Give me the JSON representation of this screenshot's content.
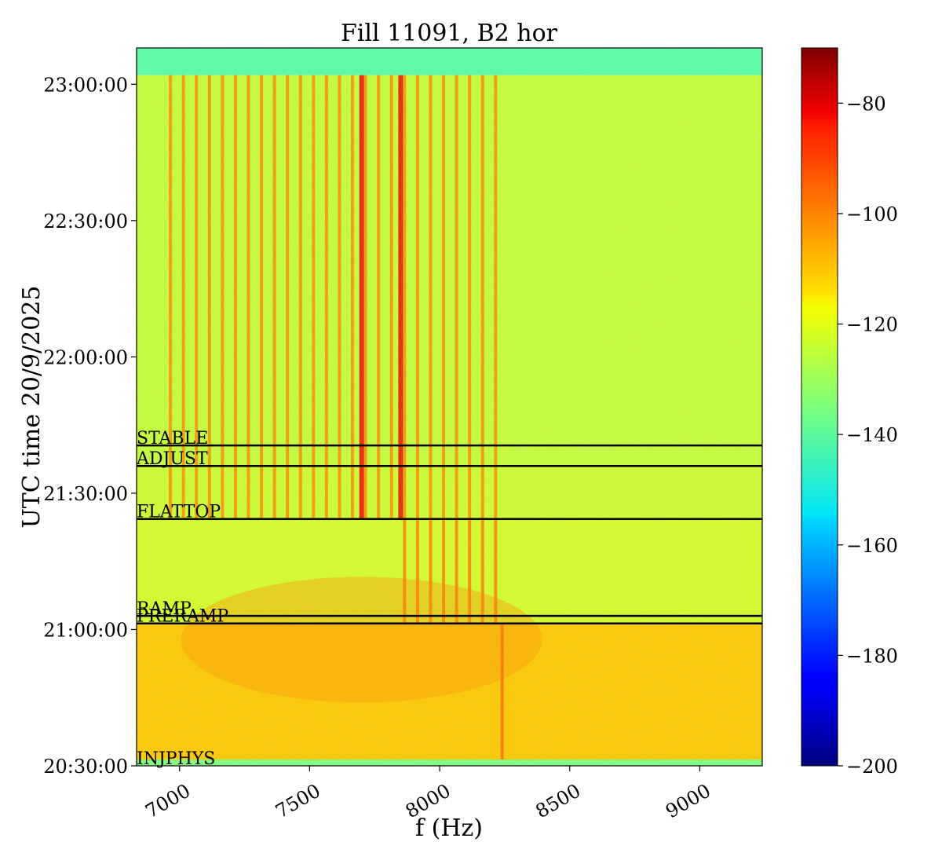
{
  "chart_data": {
    "type": "heatmap",
    "title": "Fill 11091, B2 hor",
    "xlabel": "f (Hz)",
    "ylabel": "UTC time 20/9/2025",
    "x_range": [
      6835,
      9240
    ],
    "x_ticks": [
      {
        "value": 7000,
        "label": "7000"
      },
      {
        "value": 7500,
        "label": "7500"
      },
      {
        "value": 8000,
        "label": "8000"
      },
      {
        "value": 8500,
        "label": "8500"
      },
      {
        "value": 9000,
        "label": "9000"
      }
    ],
    "y_range": [
      "20:30:00",
      "23:08:00"
    ],
    "y_ticks": [
      {
        "value": "20:30:00",
        "label": "20:30:00"
      },
      {
        "value": "21:00:00",
        "label": "21:00:00"
      },
      {
        "value": "21:30:00",
        "label": "21:30:00"
      },
      {
        "value": "22:00:00",
        "label": "22:00:00"
      },
      {
        "value": "22:30:00",
        "label": "22:30:00"
      },
      {
        "value": "23:00:00",
        "label": "23:00:00"
      }
    ],
    "colormap": "jet",
    "color_range": [
      -200,
      -70
    ],
    "colorbar_ticks": [
      {
        "value": -80,
        "label": "−80"
      },
      {
        "value": -100,
        "label": "−100"
      },
      {
        "value": -120,
        "label": "−120"
      },
      {
        "value": -140,
        "label": "−140"
      },
      {
        "value": -160,
        "label": "−160"
      },
      {
        "value": -180,
        "label": "−180"
      },
      {
        "value": -200,
        "label": "−200"
      }
    ],
    "events": [
      {
        "label": "STABLE",
        "time": "21:40:30"
      },
      {
        "label": "ADJUST",
        "time": "21:36:00"
      },
      {
        "label": "FLATTOP",
        "time": "21:24:20"
      },
      {
        "label": "RAMP",
        "time": "21:03:00"
      },
      {
        "label": "PRERAMP",
        "time": "21:01:20"
      },
      {
        "label": "INJPHYS",
        "time": "20:30:00"
      }
    ],
    "background_levels": {
      "before_injection": -135,
      "injection_to_ramp": -112,
      "ramp_to_flattop": -124,
      "flattop_to_end": -126,
      "after_dump": -140
    },
    "line_groups": [
      {
        "phase": "ramp_to_flattop",
        "start_f": 7865,
        "spacing": 50,
        "count": 8,
        "level": -102
      },
      {
        "phase": "flattop_to_end",
        "start_f": 6965,
        "spacing": 50,
        "count": 26,
        "level": -104
      },
      {
        "phase": "flattop_to_end",
        "start_f": 7700,
        "spacing": 150,
        "count": 2,
        "level": -84
      },
      {
        "phase": "injection_to_ramp",
        "start_f": 8240,
        "spacing": 0,
        "count": 1,
        "level": -100
      }
    ],
    "grid": false
  }
}
